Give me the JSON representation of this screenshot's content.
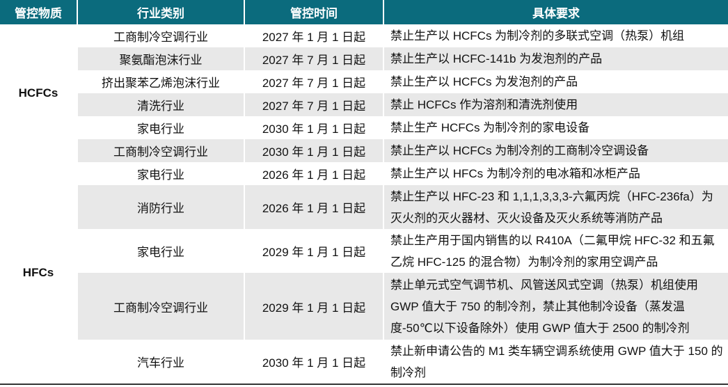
{
  "header": {
    "col1": "管控物质",
    "col2": "行业类别",
    "col3": "管控时间",
    "col4": "具体要求"
  },
  "groups": {
    "hcfc": "HCFCs",
    "hfc": "HFCs"
  },
  "rows": [
    {
      "industry": "工商制冷空调行业",
      "time": "2027 年 1 月 1 日起",
      "req": "禁止生产以 HCFCs 为制冷剂的多联式空调（热泵）机组"
    },
    {
      "industry": "聚氨酯泡沫行业",
      "time": "2027 年 7 月 1 日起",
      "req": "禁止生产以  HCFC-141b  为发泡剂的产品"
    },
    {
      "industry": "挤出聚苯乙烯泡沫行业",
      "time": "2027 年 7 月 1 日起",
      "req": "禁止生产以  HCFCs  为发泡剂的产品"
    },
    {
      "industry": "清洗行业",
      "time": "2027 年 7 月 1 日起",
      "req": "禁止  HCFCs  作为溶剂和清洗剂使用"
    },
    {
      "industry": "家电行业",
      "time": "2030 年 1 月 1 日起",
      "req": "禁止生产 HCFCs 为制冷剂的家电设备"
    },
    {
      "industry": "工商制冷空调行业",
      "time": "2030 年 1 月 1 日起",
      "req": "禁止生产以  HCFCs 为制冷剂的工商制冷空调设备"
    },
    {
      "industry": "家电行业",
      "time": "2026 年 1 月 1 日起",
      "req": "禁止生产以  HFCs  为制冷剂的电冰箱和冰柜产品"
    },
    {
      "industry": "消防行业",
      "time": "2026 年 1 月 1 日起",
      "req": "禁止生产以 HFC-23 和 1,1,1,3,3,3-六氟丙烷（HFC-236fa）为灭火剂的灭火器材、灭火设备及灭火系统等消防产品"
    },
    {
      "industry": "家电行业",
      "time": "2029 年 1 月 1 日起",
      "req": "禁止生产用于国内销售的以 R410A（二氟甲烷  HFC-32 和五氟乙烷  HFC-125 的混合物）为制冷剂的家用空调产品"
    },
    {
      "industry": "工商制冷空调行业",
      "time": "2029 年 1 月 1 日起",
      "req": "禁止单元式空气调节机、风管送风式空调（热泵）机组使用 GWP 值大于 750 的制冷剂，禁止其他制冷设备（蒸发温度-50℃以下设备除外）使用 GWP 值大于 2500 的制冷剂"
    },
    {
      "industry": "汽车行业",
      "time": "2030 年 1 月 1 日起",
      "req": "禁止新申请公告的 M1 类车辆空调系统使用 GWP 值大于 150 的制冷剂"
    }
  ]
}
